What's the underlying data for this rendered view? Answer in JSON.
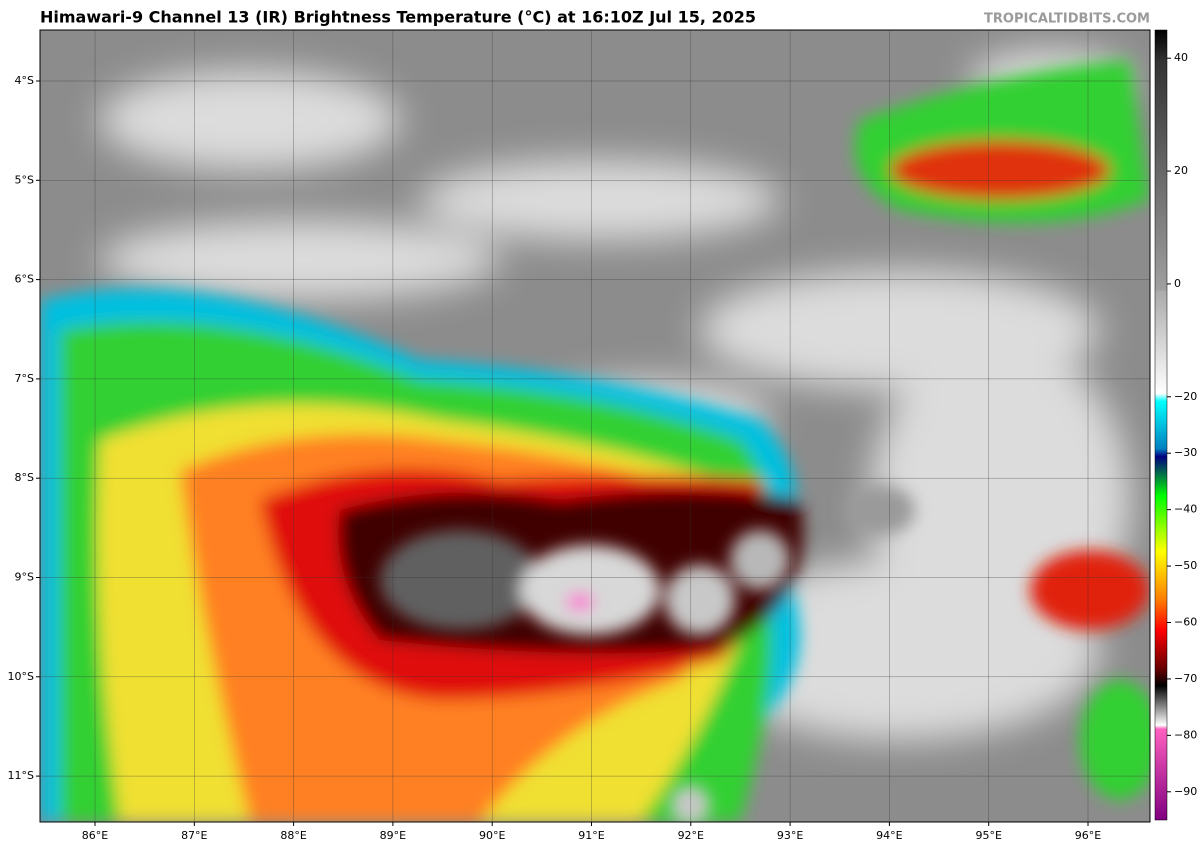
{
  "header": {
    "title": "Himawari-9 Channel 13 (IR) Brightness Temperature (°C) at 16:10Z Jul 15, 2025",
    "credit": "TROPICALTIDBITS.COM"
  },
  "map": {
    "lat_labels": [
      "4°S",
      "5°S",
      "6°S",
      "7°S",
      "8°S",
      "9°S",
      "10°S",
      "11°S"
    ],
    "lon_labels": [
      "86°E",
      "87°E",
      "88°E",
      "89°E",
      "90°E",
      "91°E",
      "92°E",
      "93°E",
      "94°E",
      "95°E",
      "96°E"
    ]
  },
  "colorbar": {
    "lim": [
      -95,
      45
    ],
    "ticks": [
      40,
      20,
      0,
      {
        "value": -20,
        "label": "−20"
      },
      {
        "value": -30,
        "label": "−30"
      },
      {
        "value": -40,
        "label": "−40"
      },
      {
        "value": -50,
        "label": "−50"
      },
      {
        "value": -60,
        "label": "−60"
      },
      {
        "value": -70,
        "label": "−70"
      },
      {
        "value": -80,
        "label": "−80"
      },
      {
        "value": -90,
        "label": "−90"
      }
    ]
  }
}
